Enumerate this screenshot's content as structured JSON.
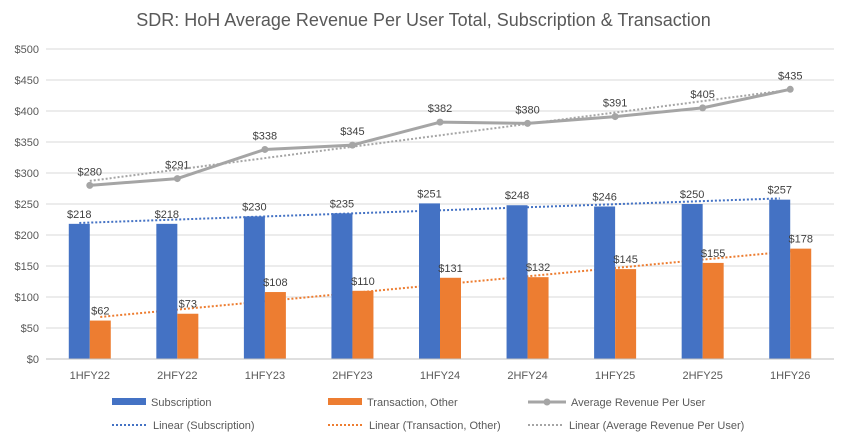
{
  "chart_data": {
    "type": "bar",
    "title": "SDR: HoH Average Revenue Per User Total, Subscription & Transaction",
    "xlabel": "",
    "ylabel": "",
    "categories": [
      "1HFY22",
      "2HFY22",
      "1HFY23",
      "2HFY23",
      "1HFY24",
      "2HFY24",
      "1HFY25",
      "2HFY25",
      "1HFY26"
    ],
    "ylim": [
      0,
      500
    ],
    "yticks": [
      0,
      50,
      100,
      150,
      200,
      250,
      300,
      350,
      400,
      450,
      500
    ],
    "ytick_labels": [
      "$0",
      "$50",
      "$100",
      "$150",
      "$200",
      "$250",
      "$300",
      "$350",
      "$400",
      "$450",
      "$500"
    ],
    "grid": true,
    "legend_position": "bottom",
    "series": [
      {
        "name": "Subscription",
        "kind": "bar",
        "color": "#4472C4",
        "values": [
          218,
          218,
          230,
          235,
          251,
          248,
          246,
          250,
          257
        ],
        "labels": [
          "$218",
          "$218",
          "$230",
          "$235",
          "$251",
          "$248",
          "$246",
          "$250",
          "$257"
        ]
      },
      {
        "name": "Transaction, Other",
        "kind": "bar",
        "color": "#ED7D31",
        "values": [
          62,
          73,
          108,
          110,
          131,
          132,
          145,
          155,
          178
        ],
        "labels": [
          "$62",
          "$73",
          "$108",
          "$110",
          "$131",
          "$132",
          "$145",
          "$155",
          "$178"
        ]
      },
      {
        "name": "Average Revenue Per User",
        "kind": "line",
        "color": "#A5A5A5",
        "values": [
          280,
          291,
          338,
          345,
          382,
          380,
          391,
          405,
          435
        ],
        "labels": [
          "$280",
          "$291",
          "$338",
          "$345",
          "$382",
          "$380",
          "$391",
          "$405",
          "$435"
        ]
      }
    ],
    "trendlines": [
      {
        "name": "Linear (Subscription)",
        "of_series": 0,
        "type": "linear",
        "color": "#4472C4"
      },
      {
        "name": "Linear (Transaction, Other)",
        "of_series": 1,
        "type": "linear",
        "color": "#ED7D31"
      },
      {
        "name": "Linear (Average Revenue Per User)",
        "of_series": 2,
        "type": "linear",
        "color": "#A5A5A5"
      }
    ]
  }
}
